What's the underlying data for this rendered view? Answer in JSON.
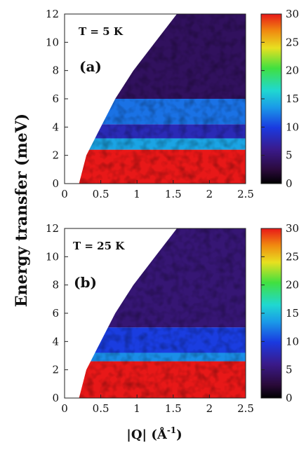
{
  "figure": {
    "ylabel": "Energy transfer (meV)",
    "xlabel_main": "|Q| (Å",
    "xlabel_sup": "-1",
    "xlabel_end": ")"
  },
  "chart_data": [
    {
      "type": "heatmap",
      "panel_label": "(a)",
      "annotation": "T = 5 K",
      "x_ticks": [
        "0",
        "0.5",
        "1",
        "1.5",
        "2",
        "2.5"
      ],
      "y_ticks": [
        "0",
        "2",
        "4",
        "6",
        "8",
        "10",
        "12"
      ],
      "colorbar_ticks": [
        "0",
        "5",
        "10",
        "15",
        "20",
        "25",
        "30"
      ],
      "xlim": [
        0,
        2.5
      ],
      "ylim": [
        0,
        12
      ],
      "clim": [
        0,
        30
      ],
      "colormap": "jet-like",
      "kinematic_edge": [
        [
          0.2,
          0
        ],
        [
          0.3,
          2
        ],
        [
          0.5,
          4
        ],
        [
          0.7,
          6
        ],
        [
          0.95,
          8
        ],
        [
          1.25,
          10
        ],
        [
          1.55,
          12
        ]
      ],
      "features": [
        {
          "energy_range": [
            0,
            2.4
          ],
          "intensity": 30
        },
        {
          "energy_range": [
            2.4,
            3.2
          ],
          "intensity": 14
        },
        {
          "energy_range": [
            3.2,
            4.2
          ],
          "intensity": 8
        },
        {
          "energy_range": [
            4.2,
            6.0
          ],
          "intensity": 12
        },
        {
          "energy_range": [
            6.0,
            12
          ],
          "intensity": 4
        }
      ]
    },
    {
      "type": "heatmap",
      "panel_label": "(b)",
      "annotation": "T = 25 K",
      "x_ticks": [
        "0",
        "0.5",
        "1",
        "1.5",
        "2",
        "2.5"
      ],
      "y_ticks": [
        "0",
        "2",
        "4",
        "6",
        "8",
        "10",
        "12"
      ],
      "colorbar_ticks": [
        "0",
        "5",
        "10",
        "15",
        "20",
        "25",
        "30"
      ],
      "xlim": [
        0,
        2.5
      ],
      "ylim": [
        0,
        12
      ],
      "clim": [
        0,
        30
      ],
      "colormap": "jet-like",
      "kinematic_edge": [
        [
          0.2,
          0
        ],
        [
          0.3,
          2
        ],
        [
          0.5,
          4
        ],
        [
          0.7,
          6
        ],
        [
          0.95,
          8
        ],
        [
          1.25,
          10
        ],
        [
          1.55,
          12
        ]
      ],
      "features": [
        {
          "energy_range": [
            0,
            2.6
          ],
          "intensity": 30
        },
        {
          "energy_range": [
            2.6,
            3.2
          ],
          "intensity": 13
        },
        {
          "energy_range": [
            3.2,
            5.0
          ],
          "intensity": 10
        },
        {
          "energy_range": [
            5.0,
            12
          ],
          "intensity": 5
        }
      ]
    }
  ]
}
